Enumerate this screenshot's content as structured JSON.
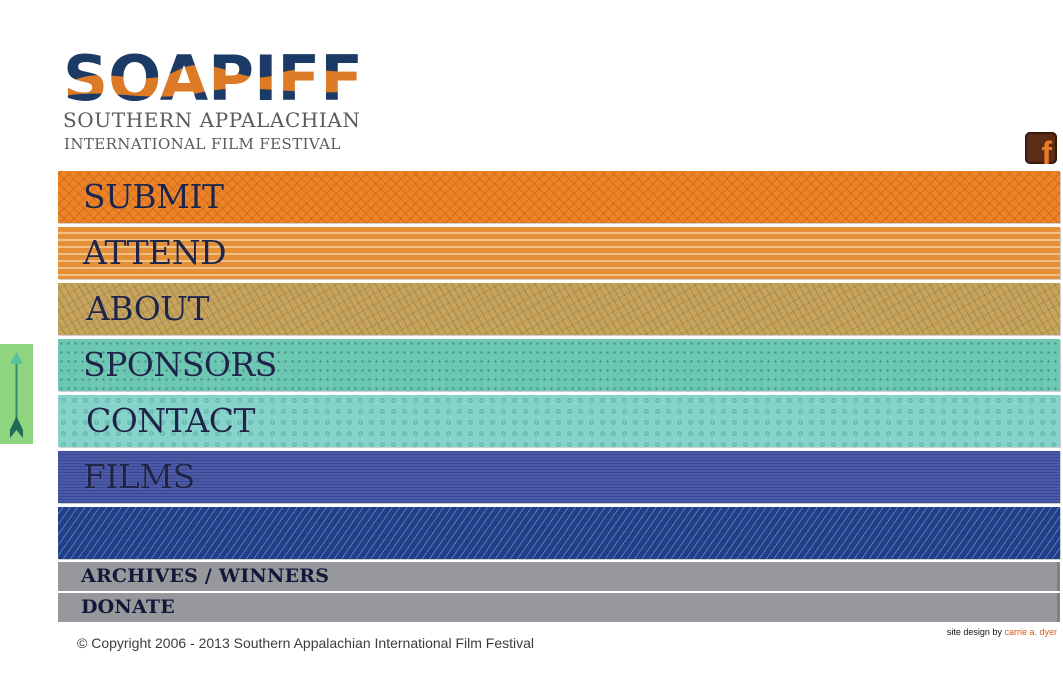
{
  "logo": {
    "wordmark": "SOAPIFF",
    "line1": "SOUTHERN APPALACHIAN",
    "line2": "INTERNATIONAL FILM FESTIVAL",
    "colors": {
      "navy": "#1b3a66",
      "orange": "#dc7a26"
    }
  },
  "social": {
    "icon": "facebook-icon",
    "glyph": "f",
    "bg": "#5b2d16",
    "fg": "#e77b27"
  },
  "side_tab": {
    "icon": "arrow-up-icon",
    "bg": "#8fd47e"
  },
  "nav": {
    "submit": "SUBMIT",
    "attend": "ATTEND",
    "about": "ABOUT",
    "sponsors": "SPONSORS",
    "contact": "CONTACT",
    "films": "FILMS",
    "archives": "ARCHIVES / WINNERS",
    "donate": "DONATE"
  },
  "footer": {
    "copyright": "© Copyright 2006 - 2013 Southern Appalachian International Film Festival",
    "credit_prefix": "site design by",
    "credit_name": "carrie a. dyer"
  }
}
